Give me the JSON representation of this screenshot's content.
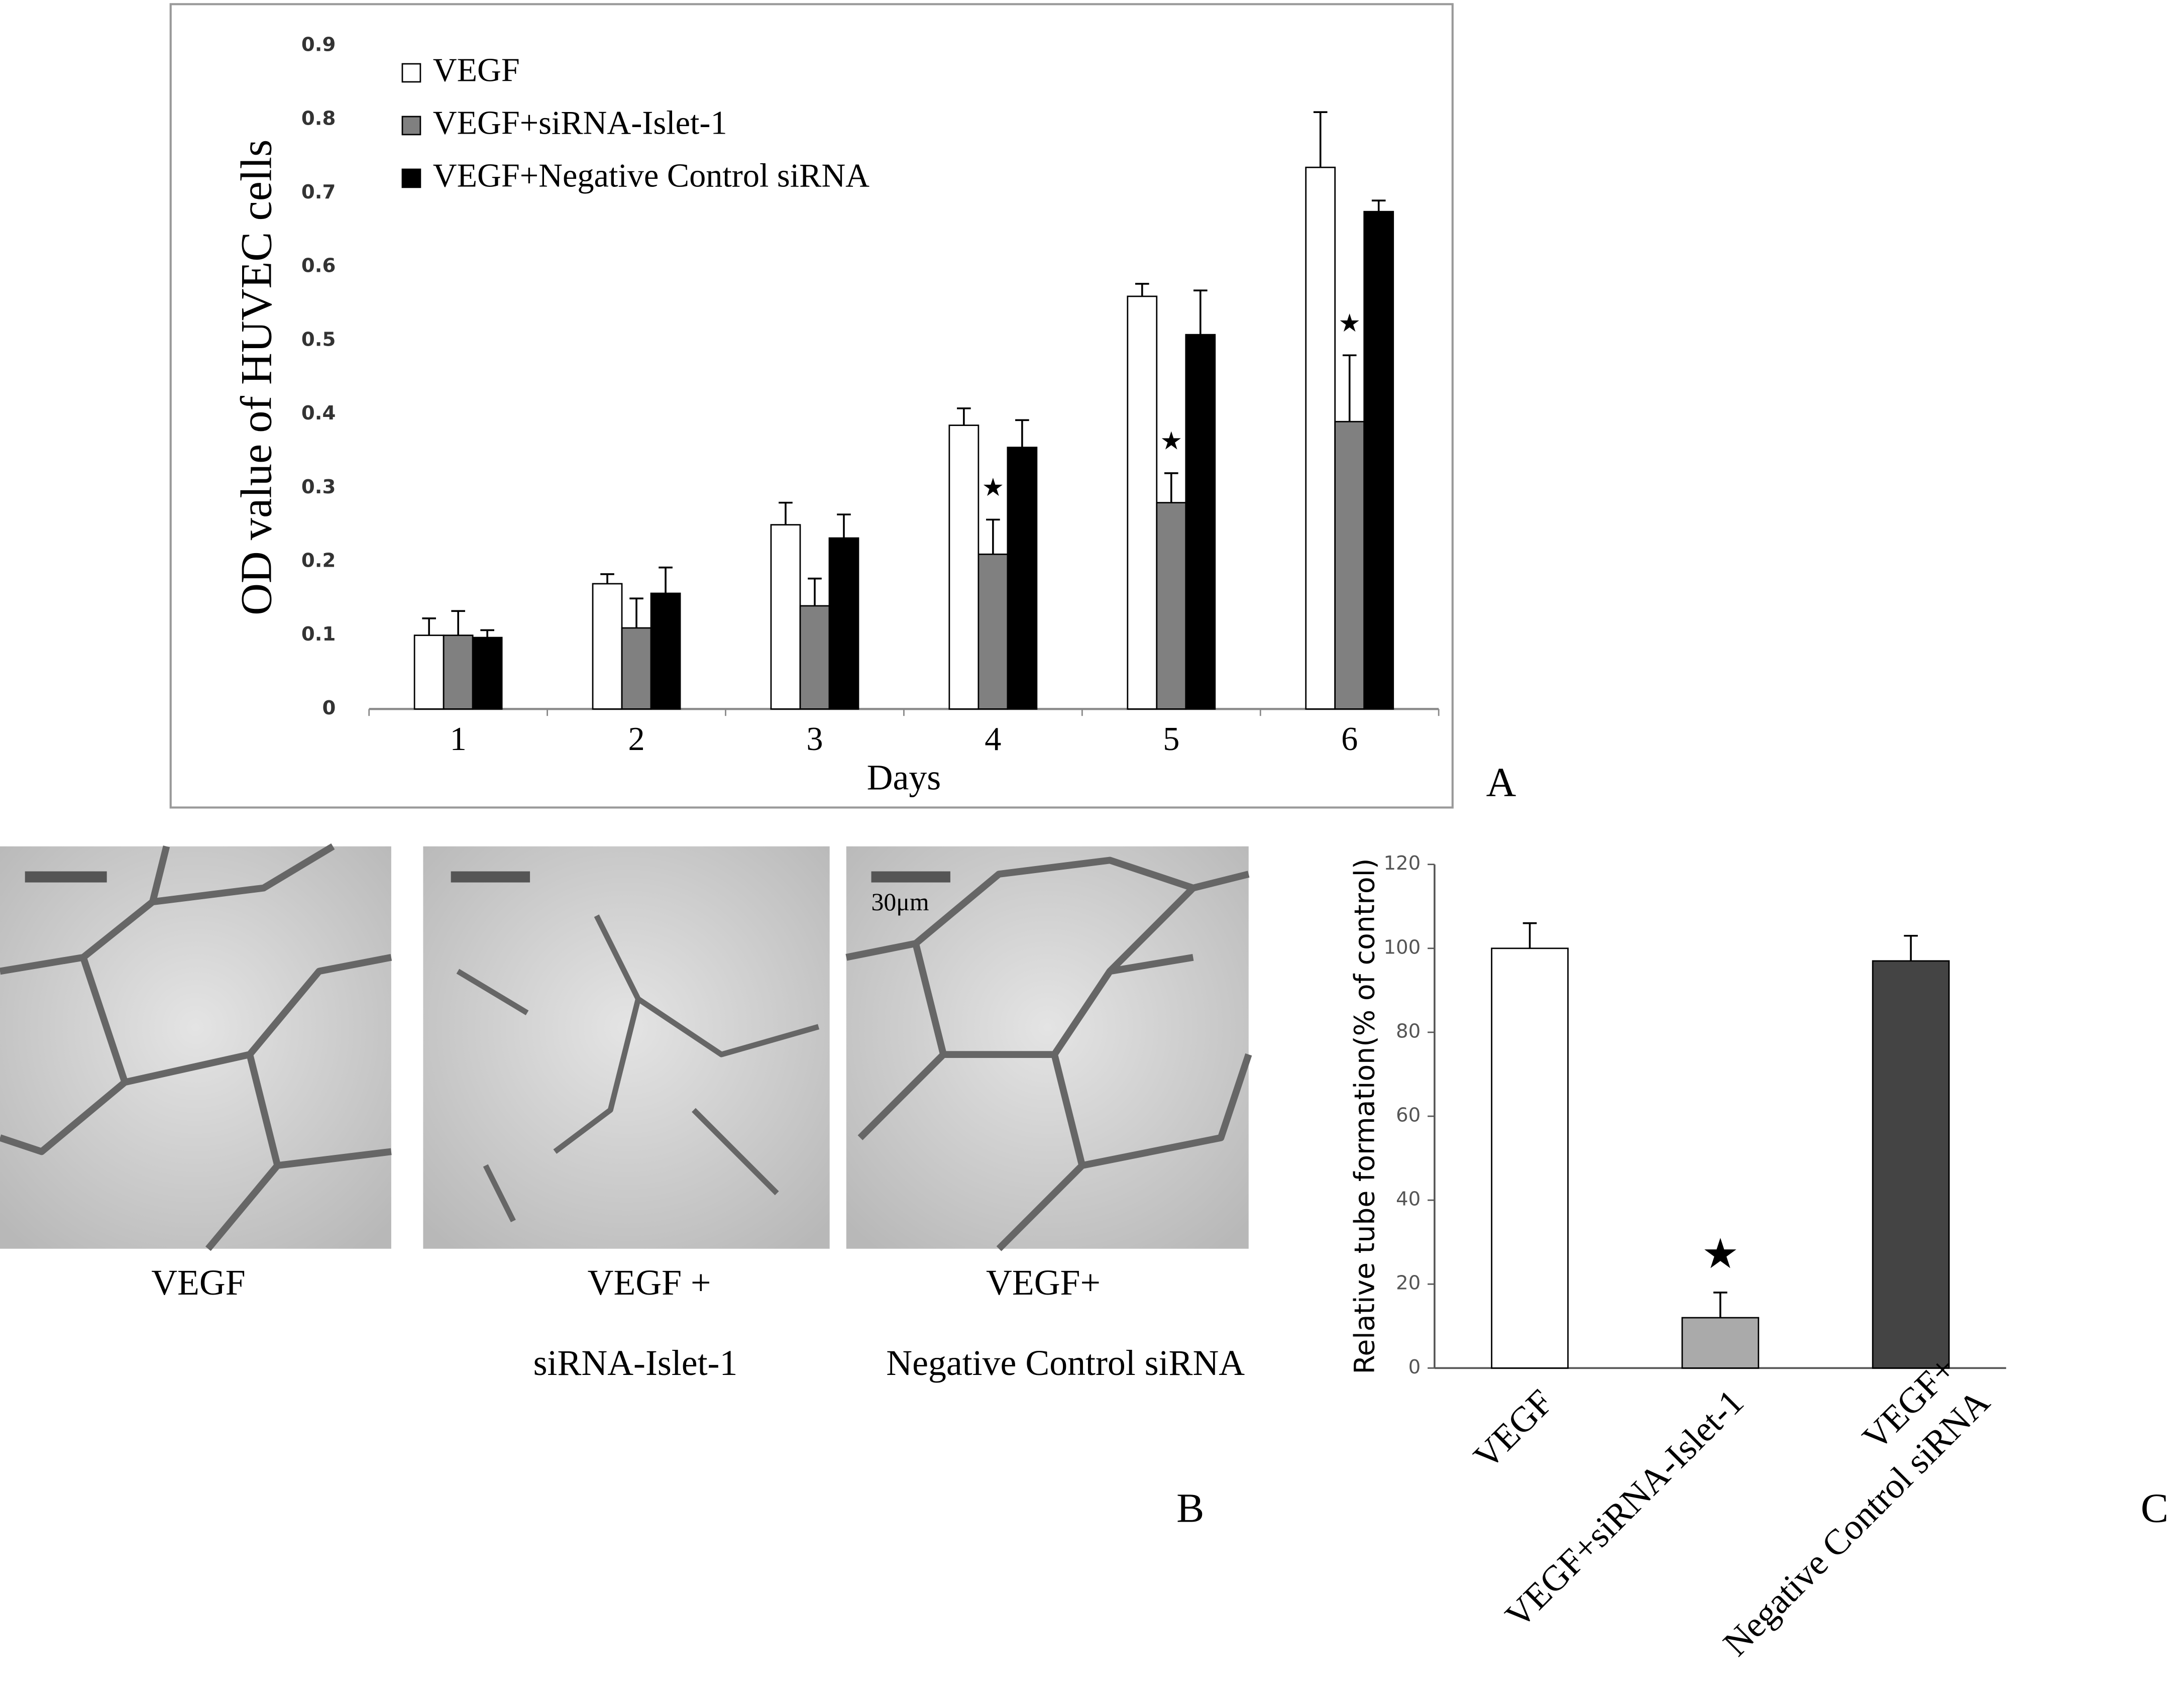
{
  "chart_data": [
    {
      "type": "grouped-bar",
      "panel_label": "A",
      "ylabel": "OD value of HUVEC cells",
      "xlabel": "Days",
      "categories": [
        "1",
        "2",
        "3",
        "4",
        "5",
        "6"
      ],
      "series": [
        {
          "name": "VEGF",
          "color": "#ffffff",
          "values": [
            0.1,
            0.17,
            0.25,
            0.385,
            0.56,
            0.735
          ],
          "errors": [
            0.023,
            0.013,
            0.03,
            0.023,
            0.017,
            0.075
          ]
        },
        {
          "name": "VEGF+siRNA-Islet-1",
          "color": "#808080",
          "values": [
            0.1,
            0.11,
            0.14,
            0.21,
            0.28,
            0.39
          ],
          "errors": [
            0.033,
            0.04,
            0.037,
            0.047,
            0.04,
            0.09
          ]
        },
        {
          "name": "VEGF+Negative Control siRNA",
          "color": "#000000",
          "values": [
            0.097,
            0.157,
            0.232,
            0.355,
            0.508,
            0.675
          ],
          "errors": [
            0.01,
            0.035,
            0.032,
            0.037,
            0.06,
            0.015
          ]
        }
      ],
      "annotations": [
        {
          "category": 3,
          "series": 1,
          "text": "★"
        },
        {
          "category": 4,
          "series": 1,
          "text": "★"
        },
        {
          "category": 5,
          "series": 1,
          "text": "★"
        }
      ],
      "ylim": [
        0,
        0.9
      ],
      "yticks": [
        0,
        0.1,
        0.2,
        0.3,
        0.4,
        0.5,
        0.6,
        0.7,
        0.8,
        0.9
      ],
      "grid": false,
      "legend": "top-left"
    },
    {
      "type": "bar",
      "panel_label": "C",
      "ylabel": "Relative tube formation(% of control)",
      "categories": [
        "VEGF",
        "VEGF+siRNA-Islet-1",
        [
          "VEGF+",
          "Negative Control siRNA"
        ]
      ],
      "values": [
        100,
        12,
        97
      ],
      "errors": [
        6,
        6,
        6
      ],
      "colors": [
        "#ffffff",
        "#aaaaaa",
        "#444444"
      ],
      "annotations": [
        {
          "category": 1,
          "text": "★"
        }
      ],
      "ylim": [
        0,
        120
      ],
      "yticks": [
        0,
        20,
        40,
        60,
        80,
        100,
        120
      ],
      "grid": false
    }
  ],
  "micrographs": {
    "panel_label": "B",
    "scale_bar": "30μm",
    "panels": [
      {
        "label": [
          "VEGF"
        ]
      },
      {
        "label": [
          "VEGF +",
          "siRNA-Islet-1"
        ]
      },
      {
        "label": [
          "VEGF+",
          "Negative Control siRNA"
        ]
      }
    ]
  }
}
